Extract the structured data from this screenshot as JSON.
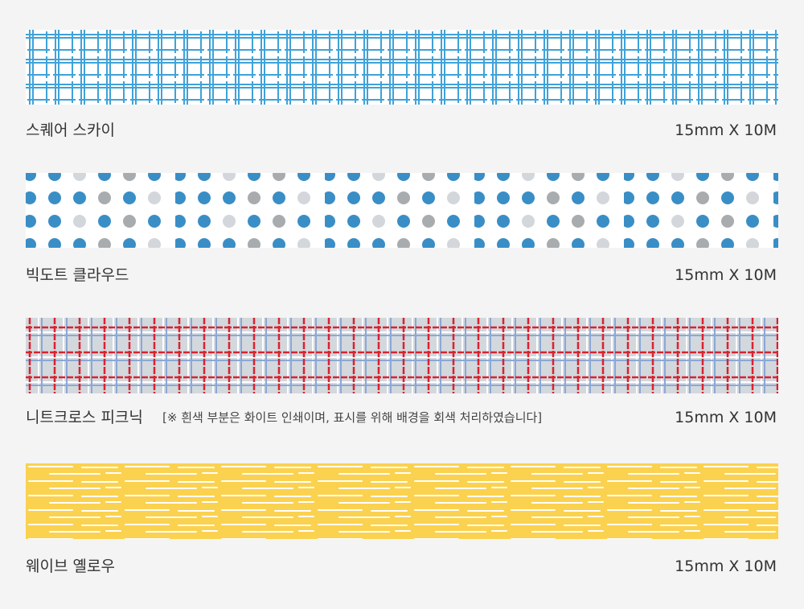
{
  "tapes": [
    {
      "name": "스퀘어 스카이",
      "size": "15mm X 10M"
    },
    {
      "name": "빅도트 클라우드",
      "size": "15mm X 10M"
    },
    {
      "name": "니트크로스 피크닉",
      "note": "[※ 흰색 부분은 화이트 인쇄이며, 표시를 위해 배경을 회색 처리하였습니다]",
      "size": "15mm X 10M"
    },
    {
      "name": "웨이브 옐로우",
      "size": "15mm X 10M"
    }
  ]
}
